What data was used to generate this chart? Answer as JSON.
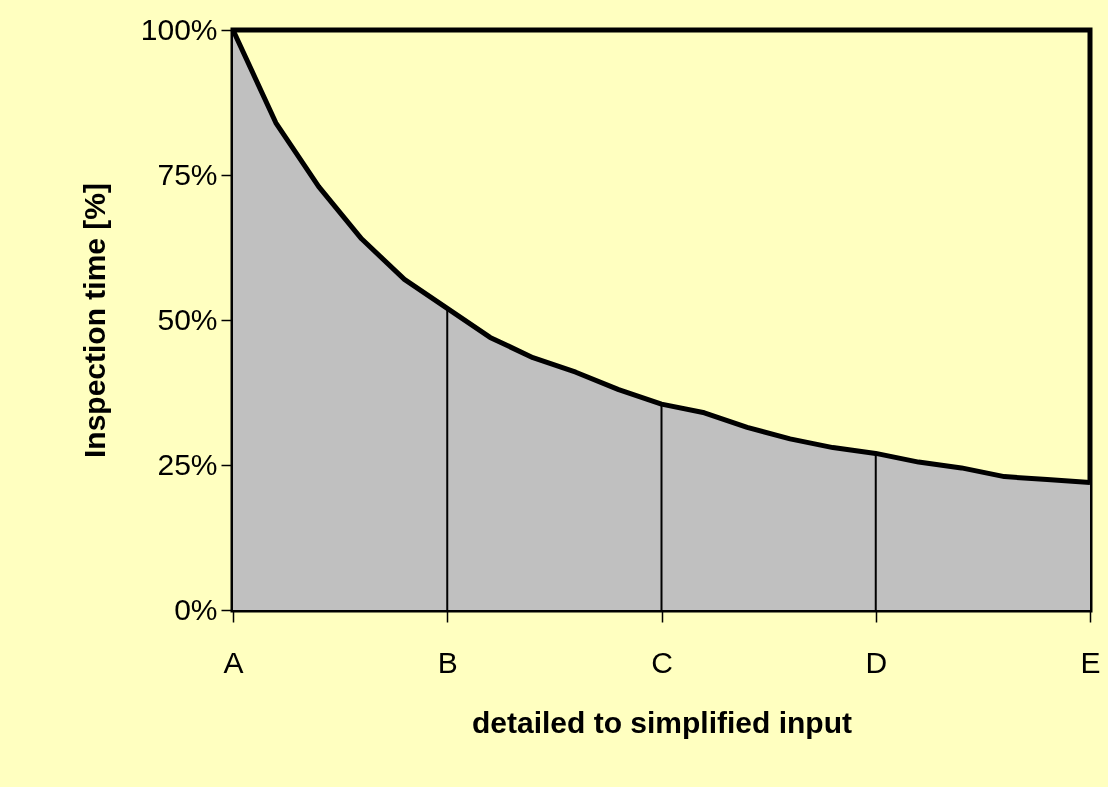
{
  "chart_data": {
    "type": "area",
    "xlabel": "detailed to simplified input",
    "ylabel": "Inspection time [%]",
    "categories": [
      "A",
      null,
      null,
      null,
      null,
      "B",
      null,
      null,
      null,
      null,
      "C",
      null,
      null,
      null,
      null,
      "D",
      null,
      null,
      null,
      null,
      "E"
    ],
    "series": [
      {
        "color": "#c0c0c0",
        "values": [
          100,
          84,
          73,
          64,
          57,
          52,
          47,
          43.5,
          41,
          38,
          35.5,
          34,
          31.5,
          29.5,
          28,
          27,
          25.5,
          24.5,
          23,
          22.5,
          22
        ]
      }
    ],
    "ylim": [
      0,
      100
    ],
    "yticks": [
      {
        "value": 0,
        "label": "0%"
      },
      {
        "value": 25,
        "label": "25%"
      },
      {
        "value": 50,
        "label": "50%"
      },
      {
        "value": 75,
        "label": "75%"
      },
      {
        "value": 100,
        "label": "100%"
      }
    ],
    "ref_lines": [
      {
        "axis": "x",
        "value": "B"
      },
      {
        "axis": "x",
        "value": "C"
      },
      {
        "axis": "x",
        "value": "D"
      }
    ],
    "grid": false
  }
}
